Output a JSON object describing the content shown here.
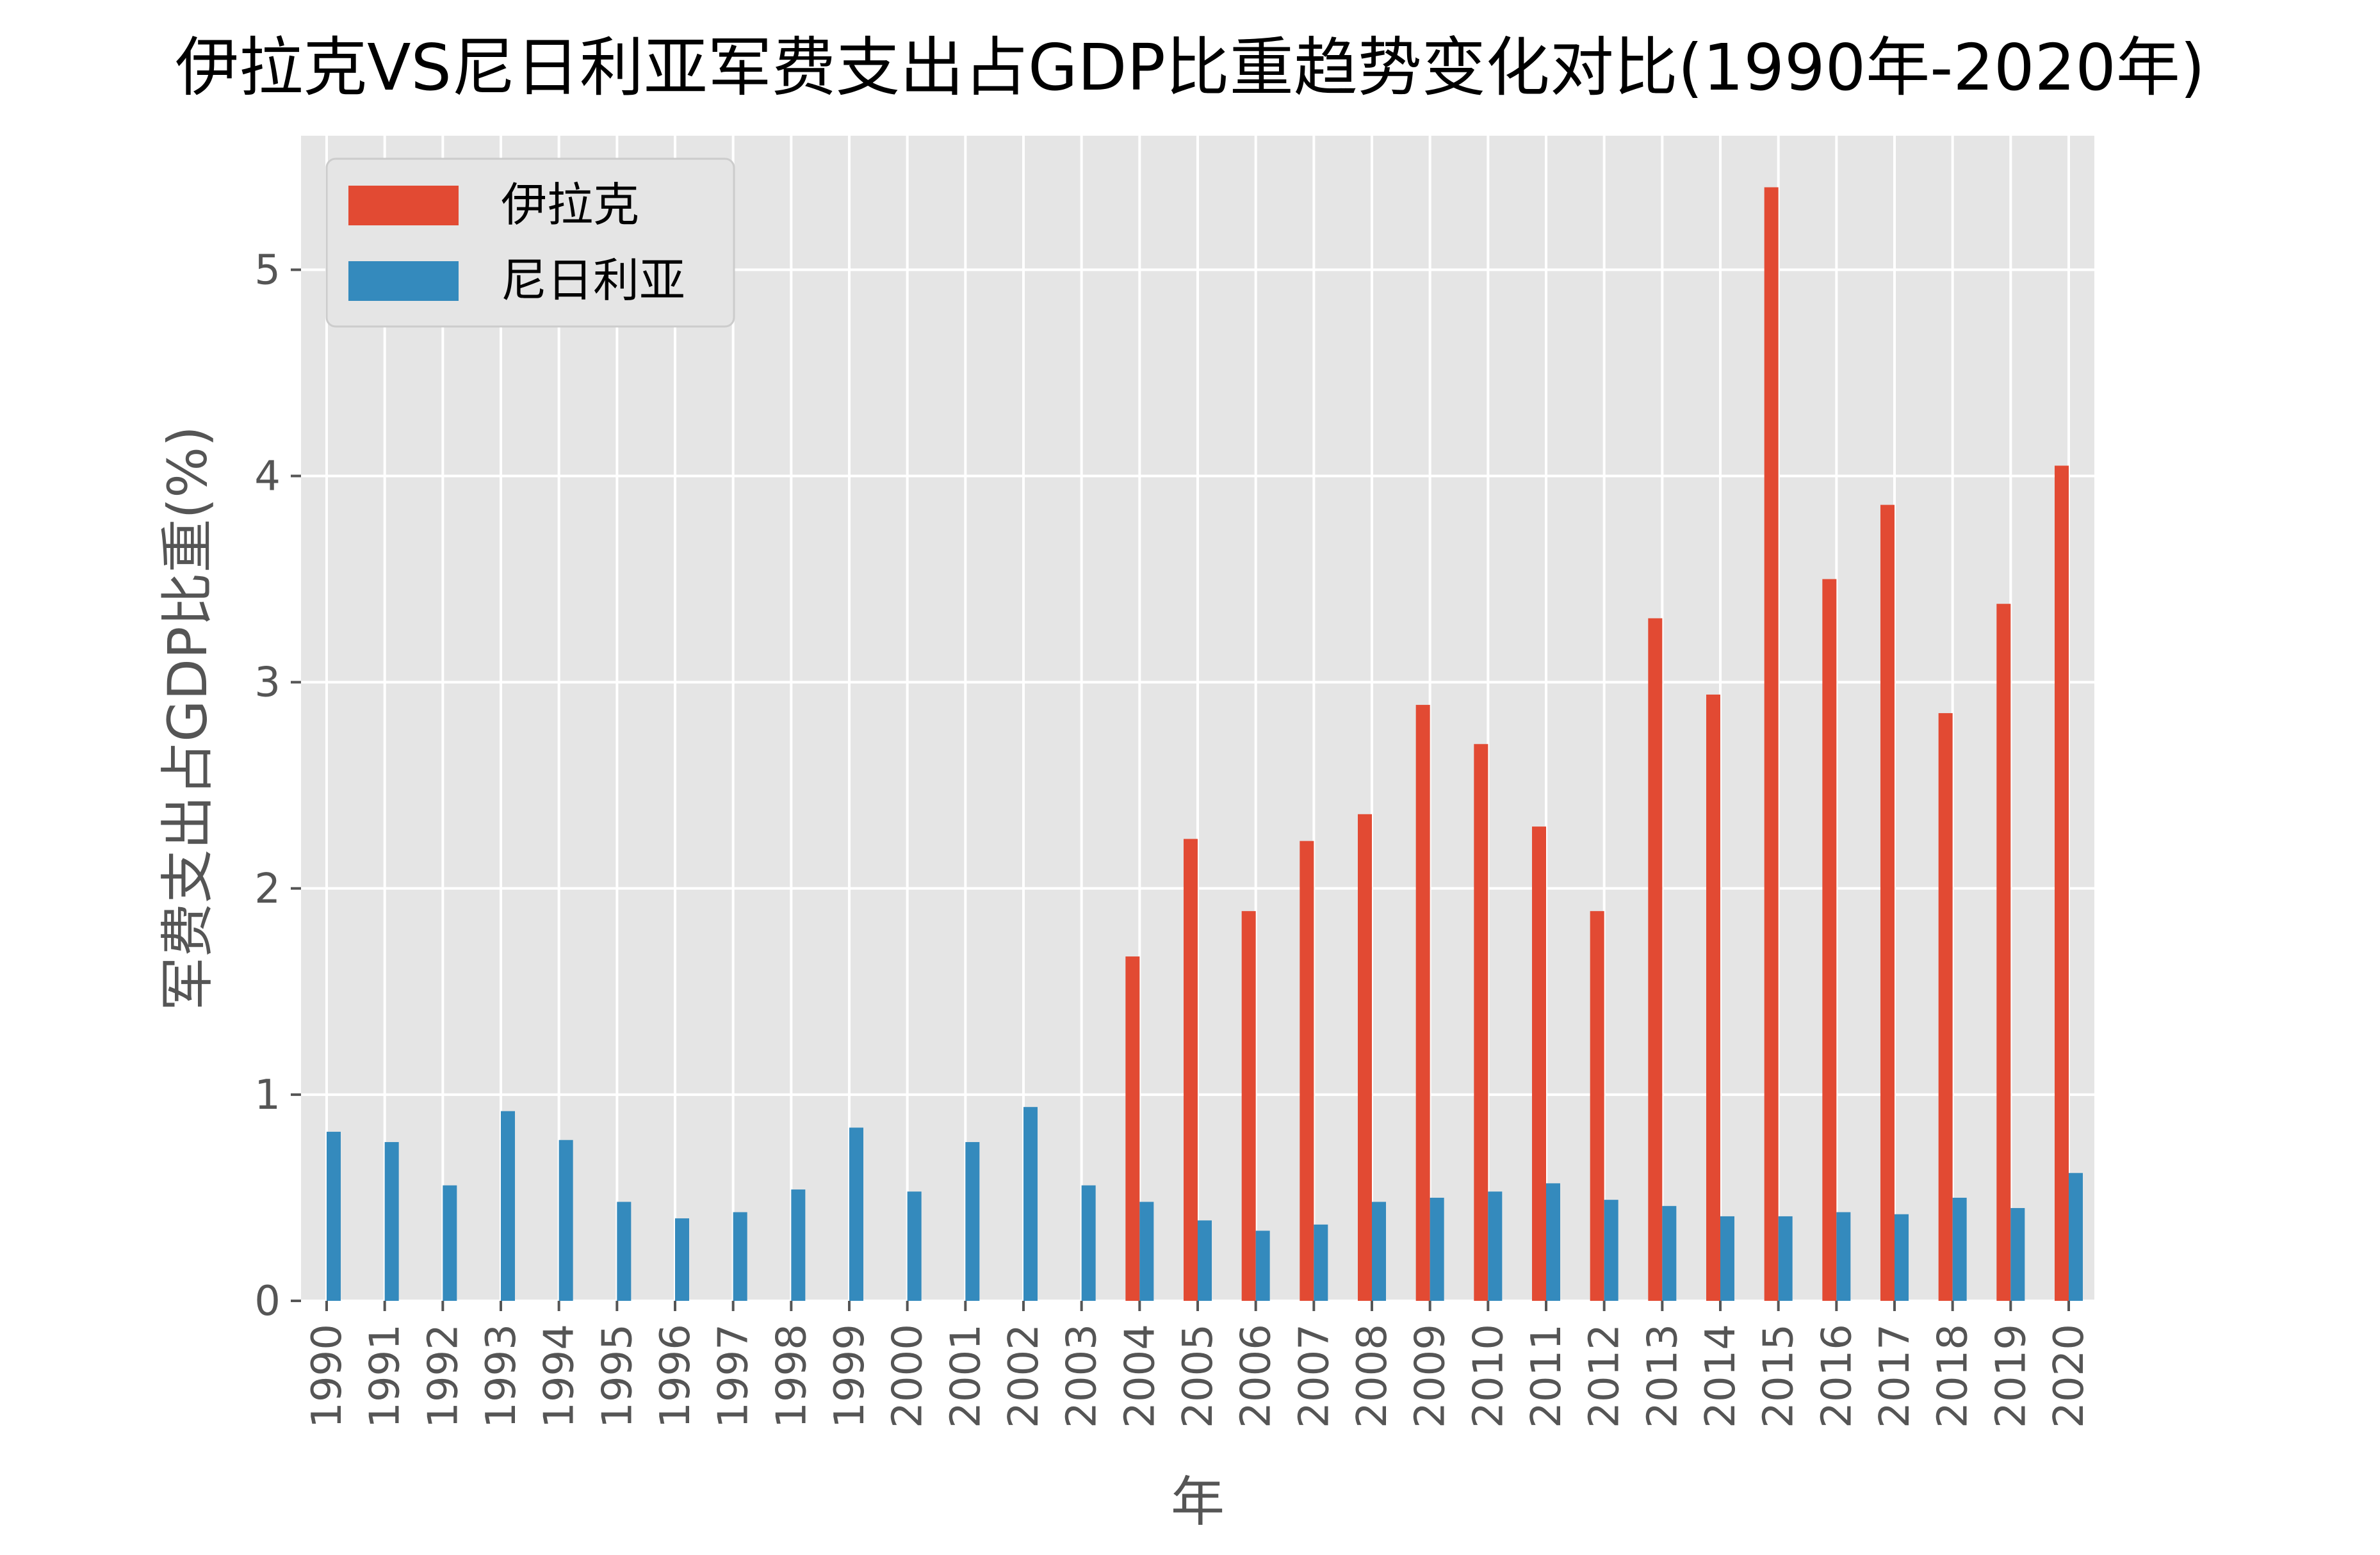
{
  "chart_data": {
    "type": "bar",
    "title": "伊拉克VS尼日利亚军费支出占GDP比重趋势变化对比(1990年-2020年)",
    "xlabel": "年",
    "ylabel": "军费支出占GDP比重(%)",
    "ylim": [
      0,
      5.65
    ],
    "yticks": [
      0,
      1,
      2,
      3,
      4,
      5
    ],
    "grid": true,
    "legend_position": "top-left",
    "categories": [
      "1990",
      "1991",
      "1992",
      "1993",
      "1994",
      "1995",
      "1996",
      "1997",
      "1998",
      "1999",
      "2000",
      "2001",
      "2002",
      "2003",
      "2004",
      "2005",
      "2006",
      "2007",
      "2008",
      "2009",
      "2010",
      "2011",
      "2012",
      "2013",
      "2014",
      "2015",
      "2016",
      "2017",
      "2018",
      "2019",
      "2020"
    ],
    "series": [
      {
        "name": "伊拉克",
        "color": "#E24A33",
        "values": [
          null,
          null,
          null,
          null,
          null,
          null,
          null,
          null,
          null,
          null,
          null,
          null,
          null,
          null,
          1.67,
          2.24,
          1.89,
          2.23,
          2.36,
          2.89,
          2.7,
          2.3,
          1.89,
          3.31,
          2.94,
          5.4,
          3.5,
          3.86,
          2.85,
          3.38,
          4.05
        ]
      },
      {
        "name": "尼日利亚",
        "color": "#348ABD",
        "values": [
          0.82,
          0.77,
          0.56,
          0.92,
          0.78,
          0.48,
          0.4,
          0.43,
          0.54,
          0.84,
          0.53,
          0.77,
          0.94,
          0.56,
          0.48,
          0.39,
          0.34,
          0.37,
          0.48,
          0.5,
          0.53,
          0.57,
          0.49,
          0.46,
          0.41,
          0.41,
          0.43,
          0.42,
          0.5,
          0.45,
          0.62
        ]
      }
    ]
  },
  "colors": {
    "plot_background": "#E5E5E5",
    "grid": "#FFFFFF",
    "tick_text": "#555555"
  }
}
